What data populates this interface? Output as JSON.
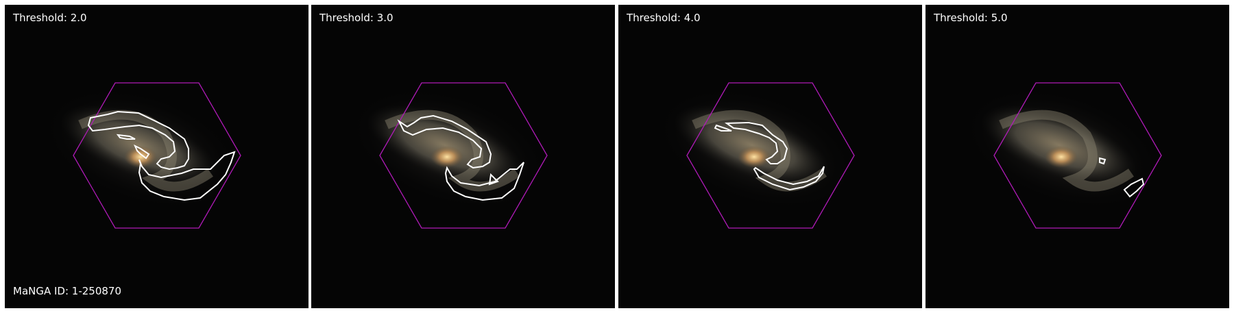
{
  "panels": [
    {
      "label": "Threshold: 2.0"
    },
    {
      "label": "Threshold: 3.0"
    },
    {
      "label": "Threshold: 4.0"
    },
    {
      "label": "Threshold: 5.0"
    }
  ],
  "manga_id": "MaNGA ID: 1-250870",
  "colors": {
    "background": "#050505",
    "hexagon": "#b01ab8",
    "contour": "#ffffff",
    "galaxy_core": "#f5c97a",
    "galaxy_disk": "#6e6a5a"
  }
}
